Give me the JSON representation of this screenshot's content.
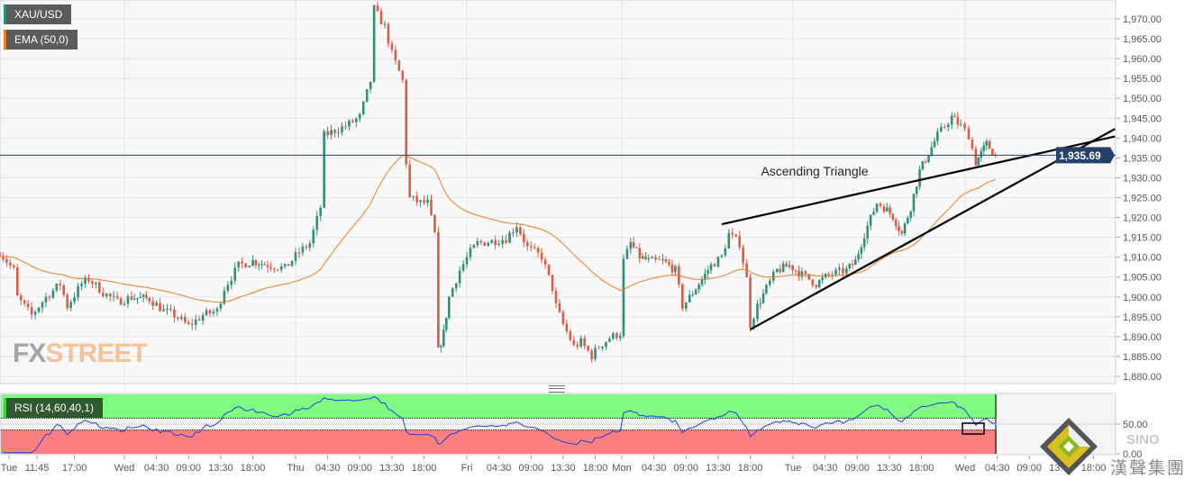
{
  "legend": {
    "symbol": "XAU/USD",
    "indicator": "EMA (50,0)",
    "rsi": "RSI (14,60,40,1)"
  },
  "watermark": {
    "fx": "FX",
    "street": "STREET"
  },
  "logo": {
    "name": "SINO",
    "chinese": "漢聲集團"
  },
  "colors": {
    "up": "#2f8f78",
    "down": "#dc5b45",
    "ema": "#f07d1f",
    "last_price": "#24416b",
    "rsi_line": "#2040e0",
    "rsi_overbought": "#80fa80",
    "rsi_oversold": "#fa7f7f",
    "trendline": "#000000"
  },
  "chart_data": {
    "type": "candlestick",
    "symbol": "XAU/USD",
    "ylim": [
      1878,
      1975
    ],
    "y_ticks": [
      "1,880.00",
      "1,885.00",
      "1,890.00",
      "1,895.00",
      "1,900.00",
      "1,905.00",
      "1,910.00",
      "1,915.00",
      "1,920.00",
      "1,925.00",
      "1,930.00",
      "1,935.00",
      "1,940.00",
      "1,945.00",
      "1,950.00",
      "1,955.00",
      "1,960.00",
      "1,965.00",
      "1,970.00"
    ],
    "last_price": "1,935.69",
    "last_price_value": 1935.69,
    "grid": true,
    "day_sequence": [
      "Tue",
      "Wed",
      "Thu",
      "Fri",
      "Mon",
      "Tue",
      "Wed"
    ],
    "x_ticks": [
      "Tue",
      "11:45",
      "17:00",
      "Wed",
      "04:30",
      "09:00",
      "13:30",
      "18:00",
      "Thu",
      "04:30",
      "09:00",
      "13:30",
      "18:00",
      "Fri",
      "04:30",
      "09:00",
      "13:30",
      "18:00",
      "Mon",
      "04:30",
      "09:00",
      "13:30",
      "18:00",
      "Tue",
      "04:30",
      "09:00",
      "13:30",
      "18:00",
      "Wed",
      "04:30",
      "09:00",
      "13:30",
      "18:00"
    ],
    "price_path": [
      [
        "Tue",
        "06:30",
        1911.3
      ],
      [
        "Tue",
        "08:30",
        1906.7
      ],
      [
        "Tue",
        "09:00",
        1899.9
      ],
      [
        "Tue",
        "11:00",
        1895.4
      ],
      [
        "Tue",
        "13:00",
        1899.9
      ],
      [
        "Tue",
        "15:00",
        1903.3
      ],
      [
        "Tue",
        "16:00",
        1897.7
      ],
      [
        "Tue",
        "18:00",
        1903.3
      ],
      [
        "Tue",
        "19:00",
        1904.5
      ],
      [
        "Tue",
        "21:00",
        1901.1
      ],
      [
        "Tue",
        "23:00",
        1898.8
      ],
      [
        "Wed",
        "01:00",
        1899.9
      ],
      [
        "Wed",
        "03:30",
        1899.5
      ],
      [
        "Wed",
        "05:30",
        1896.5
      ],
      [
        "Wed",
        "07:00",
        1895.4
      ],
      [
        "Wed",
        "09:00",
        1892.7
      ],
      [
        "Wed",
        "11:00",
        1895.4
      ],
      [
        "Wed",
        "13:00",
        1896.5
      ],
      [
        "Wed",
        "14:00",
        1902.2
      ],
      [
        "Wed",
        "16:00",
        1907.9
      ],
      [
        "Wed",
        "18:00",
        1909.0
      ],
      [
        "Wed",
        "20:30",
        1907.9
      ],
      [
        "Wed",
        "22:30",
        1907.2
      ],
      [
        "Thu",
        "00:30",
        1911.3
      ],
      [
        "Thu",
        "02:00",
        1913.5
      ],
      [
        "Thu",
        "03:30",
        1922.6
      ],
      [
        "Thu",
        "04:00",
        1940.7
      ],
      [
        "Thu",
        "05:30",
        1941.9
      ],
      [
        "Thu",
        "07:00",
        1943.0
      ],
      [
        "Thu",
        "09:00",
        1945.3
      ],
      [
        "Thu",
        "10:30",
        1954.4
      ],
      [
        "Thu",
        "11:00",
        1972.5
      ],
      [
        "Thu",
        "12:30",
        1968.0
      ],
      [
        "Thu",
        "13:30",
        1961.2
      ],
      [
        "Thu",
        "15:00",
        1954.4
      ],
      [
        "Thu",
        "15:30",
        1933.9
      ],
      [
        "Thu",
        "16:00",
        1924.9
      ],
      [
        "Thu",
        "17:30",
        1923.7
      ],
      [
        "Thu",
        "18:30",
        1923.7
      ],
      [
        "Thu",
        "19:30",
        1915.8
      ],
      [
        "Thu",
        "20:00",
        1886.3
      ],
      [
        "Thu",
        "20:45",
        1890.9
      ],
      [
        "Thu",
        "21:30",
        1899.9
      ],
      [
        "Thu",
        "23:00",
        1906.7
      ],
      [
        "Fri",
        "00:30",
        1911.3
      ],
      [
        "Fri",
        "01:30",
        1913.5
      ],
      [
        "Fri",
        "03:30",
        1914.0
      ],
      [
        "Fri",
        "05:30",
        1914.7
      ],
      [
        "Fri",
        "07:00",
        1918.1
      ],
      [
        "Fri",
        "08:30",
        1912.4
      ],
      [
        "Fri",
        "10:30",
        1910.1
      ],
      [
        "Fri",
        "12:00",
        1902.2
      ],
      [
        "Fri",
        "12:30",
        1897.7
      ],
      [
        "Fri",
        "13:30",
        1893.1
      ],
      [
        "Fri",
        "15:00",
        1887.5
      ],
      [
        "Fri",
        "16:00",
        1888.6
      ],
      [
        "Fri",
        "17:30",
        1885.2
      ],
      [
        "Fri",
        "18:30",
        1887.5
      ],
      [
        "Fri",
        "20:00",
        1889.7
      ],
      [
        "Fri",
        "21:30",
        1890.9
      ],
      [
        "Mon",
        "00:15",
        1909.0
      ],
      [
        "Mon",
        "01:15",
        1913.5
      ],
      [
        "Mon",
        "02:30",
        1910.1
      ],
      [
        "Mon",
        "03:45",
        1909.0
      ],
      [
        "Mon",
        "05:45",
        1909.0
      ],
      [
        "Mon",
        "07:30",
        1906.7
      ],
      [
        "Mon",
        "08:30",
        1897.7
      ],
      [
        "Mon",
        "09:30",
        1899.9
      ],
      [
        "Mon",
        "11:15",
        1904.5
      ],
      [
        "Mon",
        "12:30",
        1907.9
      ],
      [
        "Mon",
        "14:00",
        1910.1
      ],
      [
        "Mon",
        "15:00",
        1915.8
      ],
      [
        "Mon",
        "16:30",
        1913.5
      ],
      [
        "Mon",
        "17:30",
        1904.5
      ],
      [
        "Mon",
        "18:00",
        1893.1
      ],
      [
        "Mon",
        "19:00",
        1897.7
      ],
      [
        "Mon",
        "20:15",
        1902.2
      ],
      [
        "Mon",
        "21:45",
        1906.7
      ],
      [
        "Mon",
        "23:30",
        1907.9
      ],
      [
        "Tue",
        "01:15",
        1905.6
      ],
      [
        "Tue",
        "03:15",
        1903.3
      ],
      [
        "Tue",
        "05:00",
        1905.6
      ],
      [
        "Tue",
        "07:30",
        1906.7
      ],
      [
        "Tue",
        "08:45",
        1909.0
      ],
      [
        "Tue",
        "10:00",
        1915.8
      ],
      [
        "Tue",
        "11:45",
        1923.7
      ],
      [
        "Tue",
        "12:45",
        1922.6
      ],
      [
        "Tue",
        "14:00",
        1920.3
      ],
      [
        "Tue",
        "15:15",
        1915.8
      ],
      [
        "Tue",
        "16:30",
        1922.6
      ],
      [
        "Tue",
        "17:45",
        1931.7
      ],
      [
        "Tue",
        "19:00",
        1936.2
      ],
      [
        "Tue",
        "20:15",
        1940.7
      ],
      [
        "Tue",
        "22:15",
        1945.3
      ],
      [
        "Tue",
        "23:30",
        1943.0
      ],
      [
        "Wed",
        "00:30",
        1940.7
      ],
      [
        "Wed",
        "01:30",
        1933.9
      ],
      [
        "Wed",
        "02:15",
        1936.2
      ],
      [
        "Wed",
        "03:00",
        1938.5
      ],
      [
        "Wed",
        "04:15",
        1935.69
      ]
    ],
    "ema_period": 50,
    "rsi": {
      "period": 14,
      "overbought": 60,
      "oversold": 40,
      "ticks": [
        "50.00",
        "0.00"
      ],
      "ylim": [
        0,
        100
      ]
    },
    "trendlines": [
      {
        "from": [
          "Mon",
          "14:00",
          1918.3
        ],
        "to": [
          "Wed",
          "21:00",
          1940.4
        ]
      },
      {
        "from": [
          "Mon",
          "18:00",
          1891.8
        ],
        "to": [
          "Wed",
          "21:00",
          1942.3
        ]
      }
    ],
    "annotation": {
      "text": "Ascending Triangle",
      "at": [
        "Mon",
        "19:30",
        1930.5
      ]
    }
  }
}
